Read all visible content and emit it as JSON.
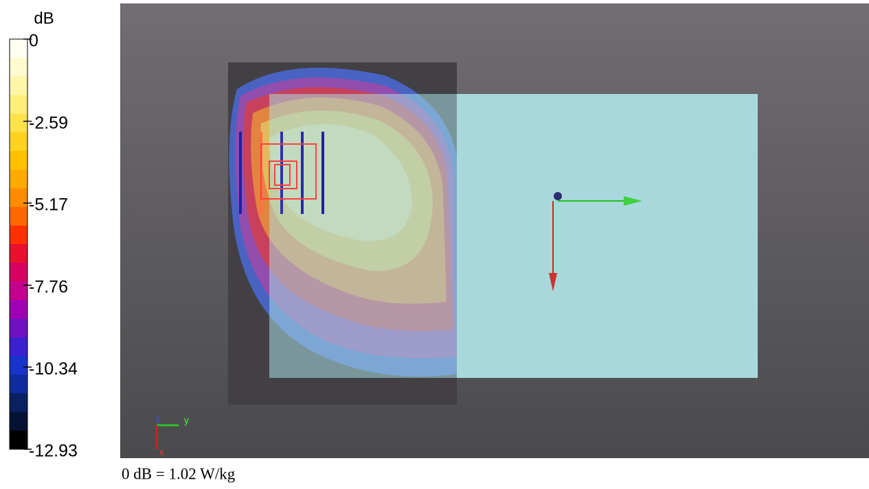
{
  "colorbar": {
    "unit": "dB",
    "clim": [
      -12.93,
      0
    ],
    "ticks": [
      0,
      -2.59,
      -5.17,
      -7.76,
      -10.34,
      -12.93
    ],
    "colors": [
      "#fffff2",
      "#fffbd0",
      "#fff6a8",
      "#ffef78",
      "#ffe24a",
      "#ffd21e",
      "#ffc000",
      "#ffaa00",
      "#ff8c00",
      "#ff6800",
      "#ff3000",
      "#e8102e",
      "#d80060",
      "#c4008c",
      "#a000b4",
      "#7010c4",
      "#3a20d0",
      "#1834cc",
      "#0c2ca0",
      "#0a2060",
      "#041234",
      "#000000"
    ]
  },
  "viewport": {
    "axes": {
      "z": "z",
      "y": "y",
      "x": "x"
    }
  },
  "caption": "0 dB = 1.02 W/kg"
}
